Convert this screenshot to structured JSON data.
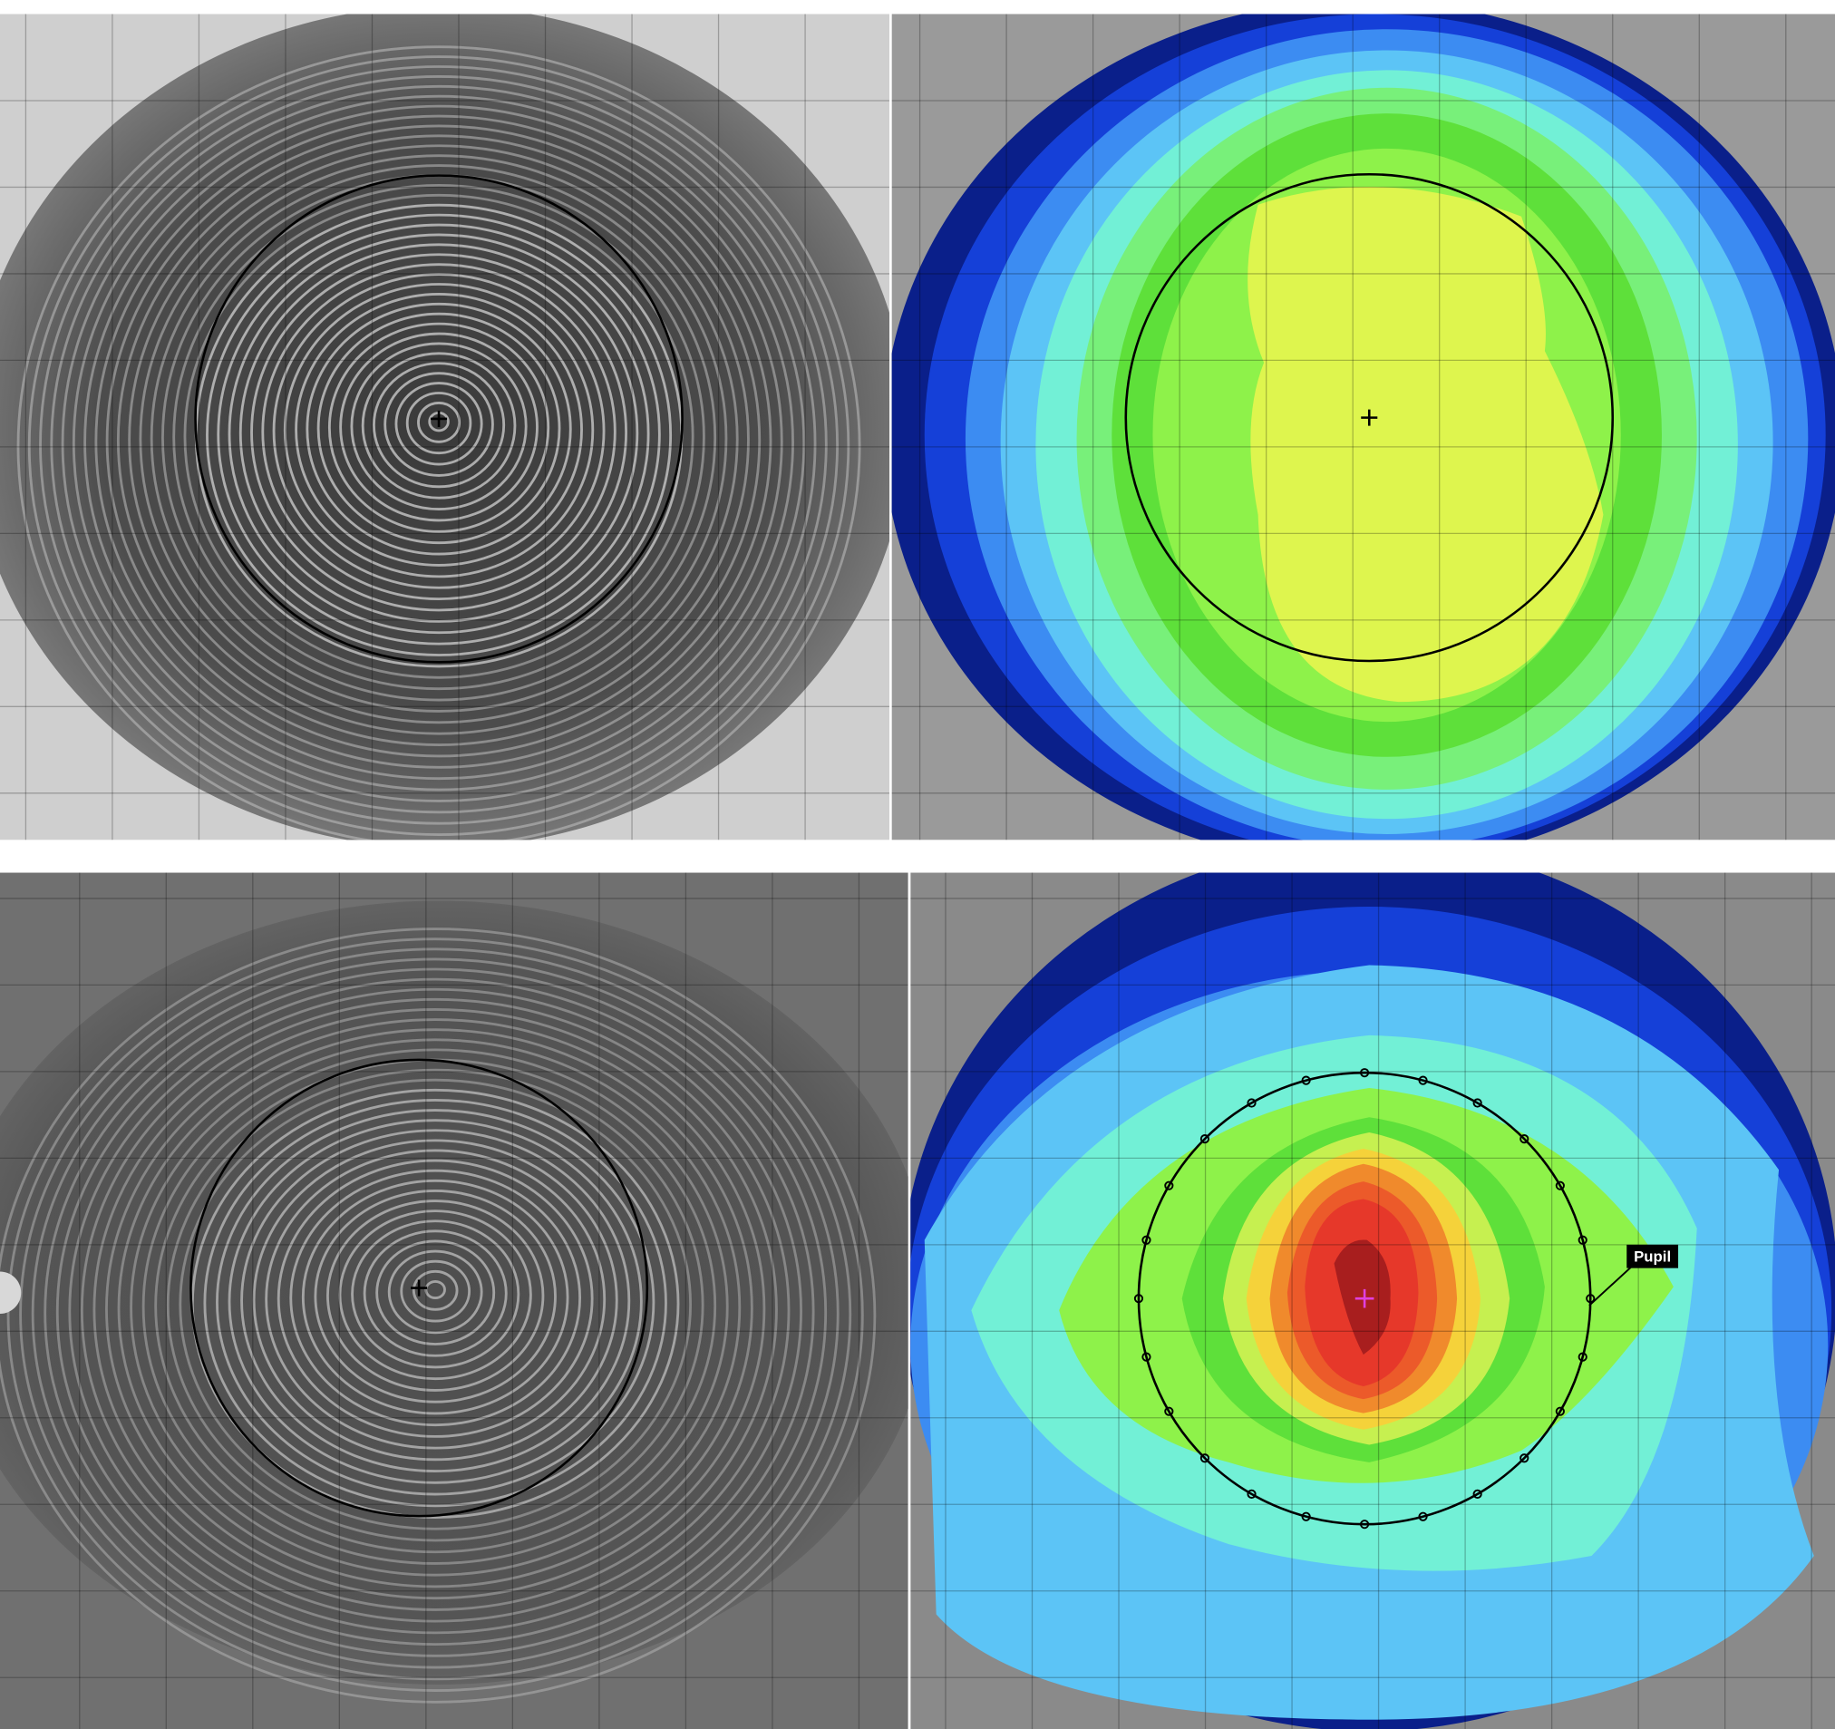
{
  "annotation": {
    "label": "Pupil"
  }
}
